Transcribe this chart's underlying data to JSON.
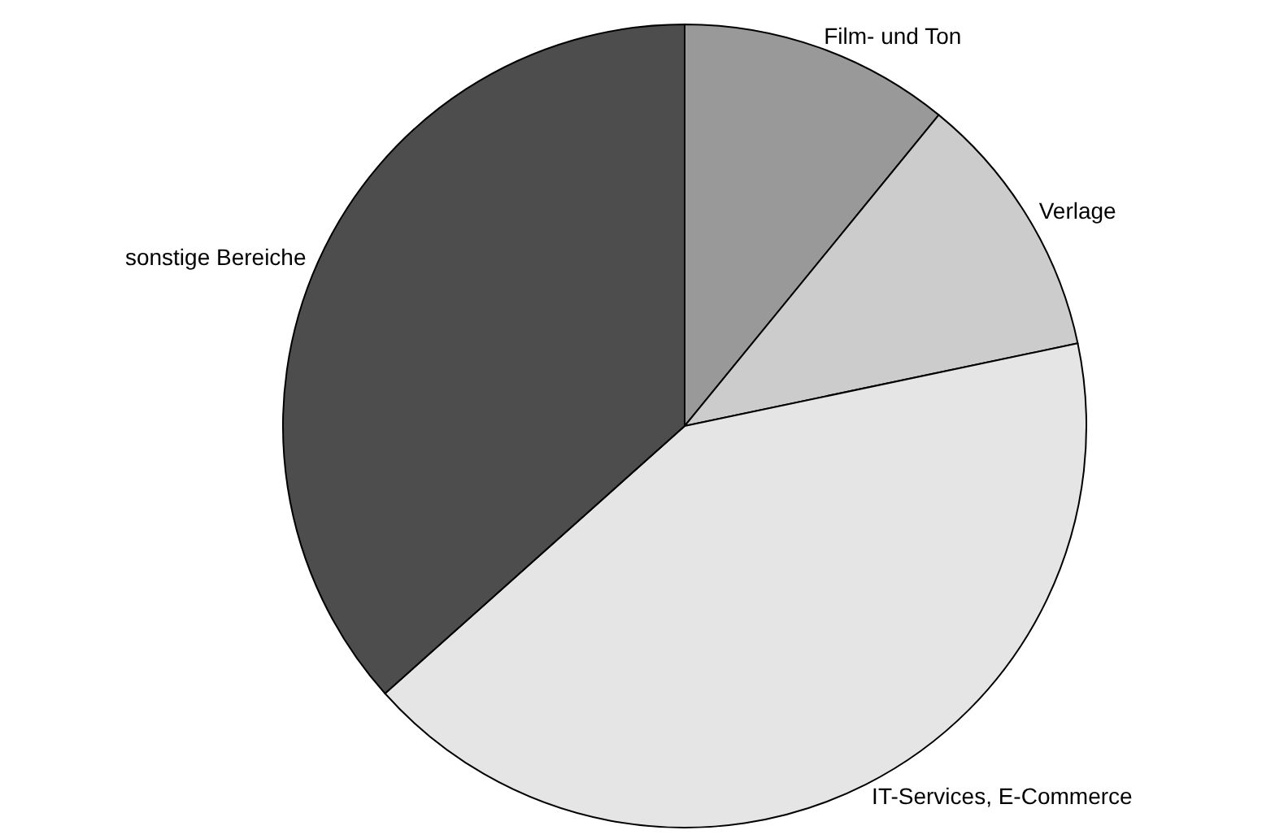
{
  "chart_data": {
    "type": "pie",
    "categories": [
      "Film- und Ton",
      "Verlage",
      "IT-Services, E-Commerce",
      "sonstige Bereiche"
    ],
    "values": [
      10.9,
      10.8,
      41.7,
      36.6
    ],
    "colors": [
      "#999999",
      "#cccccc",
      "#e5e5e5",
      "#4d4d4d"
    ],
    "legend": false
  }
}
